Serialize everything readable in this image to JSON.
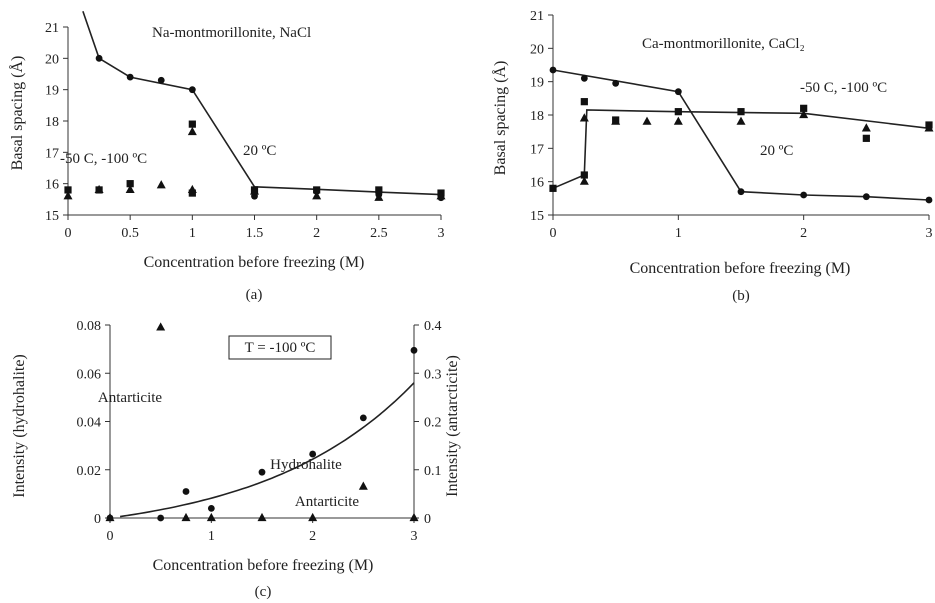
{
  "chart_data": [
    {
      "panel": "a",
      "type": "scatter",
      "caption": "(a)",
      "xlabel": "Concentration before freezing (M)",
      "ylabel": "Basal spacing (Å)",
      "xlim": [
        0,
        3
      ],
      "ylim": [
        15,
        21
      ],
      "x_ticks": [
        0,
        0.5,
        1,
        1.5,
        2,
        2.5,
        3
      ],
      "y_ticks": [
        15,
        16,
        17,
        18,
        19,
        20,
        21
      ],
      "annotations": [
        "Na-montmorillonite,  NaCl",
        "20 ºC",
        "-50 C, -100 ºC"
      ],
      "series": [
        {
          "marker": "circle",
          "points": [
            [
              0.25,
              20.0
            ],
            [
              0.5,
              19.4
            ],
            [
              0.75,
              19.3
            ],
            [
              1.0,
              19.0
            ],
            [
              1.5,
              15.6
            ],
            [
              2.0,
              15.75
            ],
            [
              2.5,
              15.65
            ],
            [
              3.0,
              15.55
            ]
          ]
        },
        {
          "marker": "square",
          "points": [
            [
              0,
              15.8
            ],
            [
              0.25,
              15.8
            ],
            [
              0.5,
              16.0
            ],
            [
              1.0,
              17.9
            ],
            [
              1.0,
              15.7
            ],
            [
              1.5,
              15.8
            ],
            [
              2.0,
              15.8
            ],
            [
              2.5,
              15.8
            ],
            [
              3.0,
              15.7
            ]
          ]
        },
        {
          "marker": "triangle",
          "points": [
            [
              0,
              15.6
            ],
            [
              0.25,
              15.8
            ],
            [
              0.5,
              15.8
            ],
            [
              0.75,
              15.95
            ],
            [
              1.0,
              17.65
            ],
            [
              1.0,
              15.8
            ],
            [
              1.5,
              15.75
            ],
            [
              2.0,
              15.6
            ],
            [
              2.5,
              15.55
            ],
            [
              3.0,
              15.6
            ]
          ]
        }
      ],
      "fit_lines": [
        {
          "points": [
            [
              0.12,
              21.5
            ],
            [
              0.25,
              20.0
            ],
            [
              0.5,
              19.4
            ],
            [
              1.0,
              19.0
            ],
            [
              1.5,
              15.9
            ],
            [
              2.0,
              15.82
            ],
            [
              2.5,
              15.73
            ],
            [
              3.0,
              15.65
            ]
          ]
        }
      ]
    },
    {
      "panel": "b",
      "type": "scatter",
      "caption": "(b)",
      "xlabel": "Concentration before freezing  (M)",
      "ylabel": "Basal spacing (Å)",
      "xlim": [
        0,
        3
      ],
      "ylim": [
        15,
        21
      ],
      "x_ticks": [
        0,
        1,
        2,
        3
      ],
      "y_ticks": [
        15,
        16,
        17,
        18,
        19,
        20,
        21
      ],
      "annotations": [
        "Ca-montmorillonite,  CaCl₂",
        "-50 C, -100 ºC",
        "20 ºC"
      ],
      "series": [
        {
          "marker": "circle",
          "points": [
            [
              0,
              19.35
            ],
            [
              0.25,
              19.1
            ],
            [
              0.5,
              18.95
            ],
            [
              1.0,
              18.7
            ],
            [
              1.5,
              15.7
            ],
            [
              2.0,
              15.6
            ],
            [
              2.5,
              15.55
            ],
            [
              3.0,
              15.45
            ]
          ]
        },
        {
          "marker": "square",
          "points": [
            [
              0,
              15.8
            ],
            [
              0.25,
              16.2
            ],
            [
              0.25,
              18.4
            ],
            [
              0.5,
              17.85
            ],
            [
              1.0,
              18.1
            ],
            [
              1.5,
              18.1
            ],
            [
              2.0,
              18.2
            ],
            [
              2.5,
              17.3
            ],
            [
              3.0,
              17.7
            ]
          ]
        },
        {
          "marker": "triangle",
          "points": [
            [
              0.25,
              16.0
            ],
            [
              0.25,
              17.9
            ],
            [
              0.5,
              17.8
            ],
            [
              0.75,
              17.8
            ],
            [
              1.0,
              17.8
            ],
            [
              1.5,
              17.8
            ],
            [
              2.0,
              18.0
            ],
            [
              2.5,
              17.6
            ],
            [
              3.0,
              17.6
            ]
          ]
        }
      ],
      "fit_lines": [
        {
          "points": [
            [
              0,
              19.35
            ],
            [
              1.0,
              18.7
            ],
            [
              1.5,
              15.7
            ],
            [
              2.0,
              15.6
            ],
            [
              2.5,
              15.55
            ],
            [
              3.0,
              15.45
            ]
          ]
        },
        {
          "points": [
            [
              0,
              15.8
            ],
            [
              0.25,
              16.2
            ],
            [
              0.27,
              18.15
            ],
            [
              1.0,
              18.1
            ],
            [
              2.0,
              18.05
            ],
            [
              3.0,
              17.6
            ]
          ]
        }
      ]
    },
    {
      "panel": "c",
      "type": "scatter",
      "caption": "(c)",
      "xlabel": "Concentration before freezing  (M)",
      "ylabel": "Intensity (hydrohalite)",
      "y2label": "Intensity (antarcticite)",
      "xlim": [
        0,
        3
      ],
      "ylim": [
        0,
        0.08
      ],
      "y2lim": [
        0,
        0.4
      ],
      "x_ticks": [
        0,
        1,
        2,
        3
      ],
      "y_ticks": [
        0,
        0.02,
        0.04,
        0.06,
        0.08
      ],
      "y2_ticks": [
        0,
        0.1,
        0.2,
        0.3,
        0.4
      ],
      "annotations": [
        "T = -100 ºC",
        "Antarticite",
        "Hydrohalite",
        "Antarticite"
      ],
      "series": [
        {
          "name": "Hydrohalite",
          "marker": "circle",
          "axis": "left",
          "points": [
            [
              0,
              0
            ],
            [
              0.5,
              0
            ],
            [
              0.75,
              0.011
            ],
            [
              1.0,
              0.004
            ],
            [
              1.5,
              0.019
            ],
            [
              2.0,
              0.0265
            ],
            [
              2.5,
              0.0415
            ],
            [
              3.0,
              0.0695
            ]
          ]
        },
        {
          "name": "Antarticite",
          "marker": "triangle",
          "axis": "right",
          "points": [
            [
              0,
              0
            ],
            [
              0.5,
              0.395
            ],
            [
              0.75,
              0
            ],
            [
              1.0,
              0
            ],
            [
              1.5,
              0
            ],
            [
              2.0,
              0
            ],
            [
              2.5,
              0.065
            ],
            [
              3.0,
              0
            ]
          ]
        }
      ],
      "fit_lines": [
        {
          "axis": "left",
          "curve": "exponential",
          "a": 0.00855,
          "b": 0.674,
          "x_start": 0.1,
          "x_end": 3.0
        }
      ]
    }
  ]
}
